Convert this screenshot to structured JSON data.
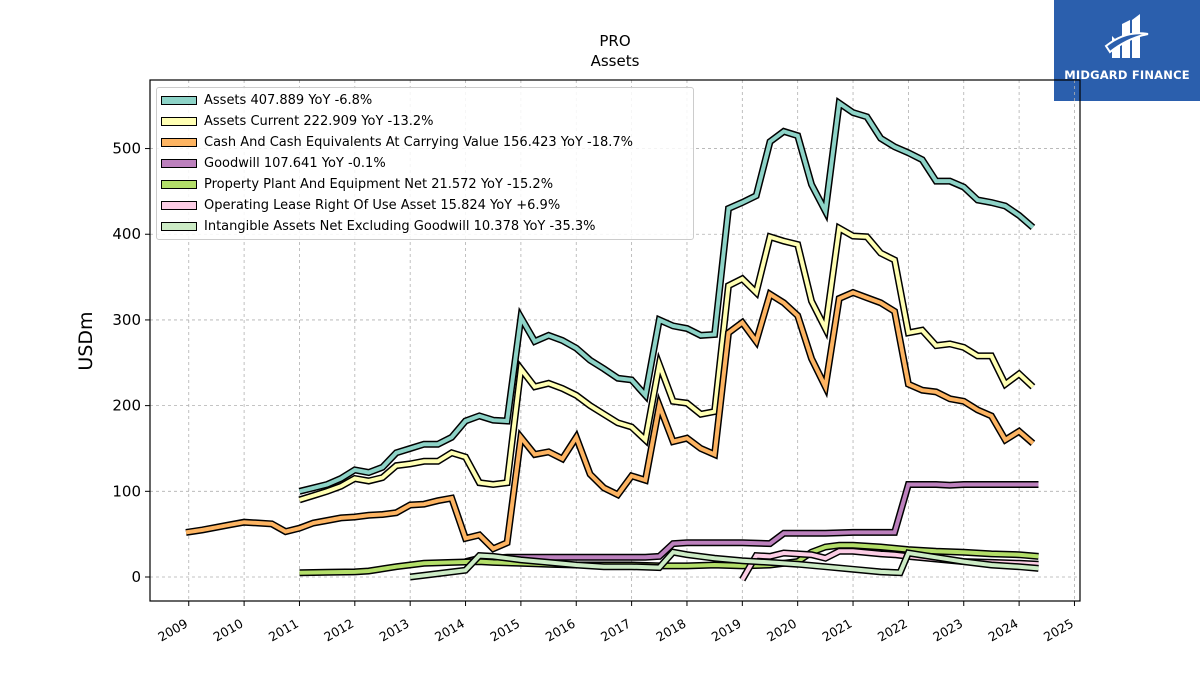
{
  "header": {
    "title": "PRO",
    "subtitle": "Assets"
  },
  "logo": {
    "text": "MIDGARD FINANCE",
    "bg": "#2b5fad",
    "icon": "midgard-logo-icon"
  },
  "chart_data": {
    "type": "line",
    "title": "PRO",
    "subtitle": "Assets",
    "xlabel": "",
    "ylabel": "USDm",
    "xlim": [
      2008.3,
      2025.1
    ],
    "ylim": [
      -28,
      580
    ],
    "x_ticks": [
      "2009",
      "2010",
      "2011",
      "2012",
      "2013",
      "2014",
      "2015",
      "2016",
      "2017",
      "2018",
      "2019",
      "2020",
      "2021",
      "2022",
      "2023",
      "2024",
      "2025"
    ],
    "y_ticks": [
      0,
      100,
      200,
      300,
      400,
      500
    ],
    "grid": true,
    "legend_position": "top-left",
    "series": [
      {
        "name": "Assets",
        "legend": "Assets  407.889 YoY -6.8%",
        "color": "#8dd3c7",
        "points": [
          [
            2011.0,
            100
          ],
          [
            2011.25,
            104
          ],
          [
            2011.5,
            108
          ],
          [
            2011.75,
            115
          ],
          [
            2012.0,
            125
          ],
          [
            2012.25,
            122
          ],
          [
            2012.5,
            128
          ],
          [
            2012.75,
            145
          ],
          [
            2013.0,
            150
          ],
          [
            2013.25,
            155
          ],
          [
            2013.5,
            155
          ],
          [
            2013.75,
            163
          ],
          [
            2014.0,
            182
          ],
          [
            2014.25,
            188
          ],
          [
            2014.5,
            183
          ],
          [
            2014.75,
            182
          ],
          [
            2015.0,
            303
          ],
          [
            2015.25,
            275
          ],
          [
            2015.5,
            282
          ],
          [
            2015.75,
            276
          ],
          [
            2016.0,
            267
          ],
          [
            2016.25,
            253
          ],
          [
            2016.5,
            243
          ],
          [
            2016.75,
            232
          ],
          [
            2017.0,
            230
          ],
          [
            2017.25,
            212
          ],
          [
            2017.5,
            300
          ],
          [
            2017.75,
            293
          ],
          [
            2018.0,
            290
          ],
          [
            2018.25,
            282
          ],
          [
            2018.5,
            283
          ],
          [
            2018.75,
            430
          ],
          [
            2019.0,
            437
          ],
          [
            2019.25,
            445
          ],
          [
            2019.5,
            508
          ],
          [
            2019.75,
            520
          ],
          [
            2020.0,
            515
          ],
          [
            2020.25,
            458
          ],
          [
            2020.5,
            427
          ],
          [
            2020.75,
            553
          ],
          [
            2021.0,
            542
          ],
          [
            2021.25,
            537
          ],
          [
            2021.5,
            512
          ],
          [
            2021.75,
            502
          ],
          [
            2022.0,
            495
          ],
          [
            2022.25,
            487
          ],
          [
            2022.5,
            462
          ],
          [
            2022.75,
            462
          ],
          [
            2023.0,
            455
          ],
          [
            2023.25,
            440
          ],
          [
            2023.5,
            437
          ],
          [
            2023.75,
            433
          ],
          [
            2024.0,
            422
          ],
          [
            2024.25,
            408
          ]
        ]
      },
      {
        "name": "Assets Current",
        "legend": "Assets Current  222.909 YoY -13.2%",
        "color": "#ffffb3",
        "points": [
          [
            2011.0,
            90
          ],
          [
            2011.25,
            95
          ],
          [
            2011.5,
            100
          ],
          [
            2011.75,
            106
          ],
          [
            2012.0,
            115
          ],
          [
            2012.25,
            112
          ],
          [
            2012.5,
            116
          ],
          [
            2012.75,
            130
          ],
          [
            2013.0,
            132
          ],
          [
            2013.25,
            135
          ],
          [
            2013.5,
            135
          ],
          [
            2013.75,
            145
          ],
          [
            2014.0,
            140
          ],
          [
            2014.25,
            110
          ],
          [
            2014.5,
            108
          ],
          [
            2014.75,
            110
          ],
          [
            2015.0,
            243
          ],
          [
            2015.25,
            222
          ],
          [
            2015.5,
            226
          ],
          [
            2015.75,
            220
          ],
          [
            2016.0,
            212
          ],
          [
            2016.25,
            200
          ],
          [
            2016.5,
            190
          ],
          [
            2016.75,
            180
          ],
          [
            2017.0,
            175
          ],
          [
            2017.25,
            160
          ],
          [
            2017.5,
            248
          ],
          [
            2017.75,
            205
          ],
          [
            2018.0,
            203
          ],
          [
            2018.25,
            190
          ],
          [
            2018.5,
            193
          ],
          [
            2018.75,
            340
          ],
          [
            2019.0,
            348
          ],
          [
            2019.25,
            332
          ],
          [
            2019.5,
            397
          ],
          [
            2019.75,
            392
          ],
          [
            2020.0,
            388
          ],
          [
            2020.25,
            322
          ],
          [
            2020.5,
            290
          ],
          [
            2020.75,
            407
          ],
          [
            2021.0,
            398
          ],
          [
            2021.25,
            397
          ],
          [
            2021.5,
            378
          ],
          [
            2021.75,
            370
          ],
          [
            2022.0,
            285
          ],
          [
            2022.25,
            288
          ],
          [
            2022.5,
            270
          ],
          [
            2022.75,
            272
          ],
          [
            2023.0,
            268
          ],
          [
            2023.25,
            258
          ],
          [
            2023.5,
            258
          ],
          [
            2023.75,
            225
          ],
          [
            2024.0,
            237
          ],
          [
            2024.25,
            222
          ]
        ]
      },
      {
        "name": "Cash And Cash Equivalents At Carrying Value",
        "legend": "Cash And Cash Equivalents At Carrying Value  156.423 YoY -18.7%",
        "color": "#fdb462",
        "points": [
          [
            2008.95,
            52
          ],
          [
            2009.25,
            55
          ],
          [
            2009.5,
            58
          ],
          [
            2009.75,
            61
          ],
          [
            2010.0,
            64
          ],
          [
            2010.25,
            63
          ],
          [
            2010.5,
            62
          ],
          [
            2010.75,
            53
          ],
          [
            2011.0,
            57
          ],
          [
            2011.25,
            63
          ],
          [
            2011.5,
            66
          ],
          [
            2011.75,
            69
          ],
          [
            2012.0,
            70
          ],
          [
            2012.25,
            72
          ],
          [
            2012.5,
            73
          ],
          [
            2012.75,
            75
          ],
          [
            2013.0,
            84
          ],
          [
            2013.25,
            85
          ],
          [
            2013.5,
            89
          ],
          [
            2013.75,
            92
          ],
          [
            2014.0,
            45
          ],
          [
            2014.25,
            49
          ],
          [
            2014.5,
            33
          ],
          [
            2014.75,
            40
          ],
          [
            2015.0,
            163
          ],
          [
            2015.25,
            143
          ],
          [
            2015.5,
            146
          ],
          [
            2015.75,
            138
          ],
          [
            2016.0,
            163
          ],
          [
            2016.25,
            120
          ],
          [
            2016.5,
            104
          ],
          [
            2016.75,
            96
          ],
          [
            2017.0,
            118
          ],
          [
            2017.25,
            113
          ],
          [
            2017.5,
            200
          ],
          [
            2017.75,
            158
          ],
          [
            2018.0,
            162
          ],
          [
            2018.25,
            150
          ],
          [
            2018.5,
            143
          ],
          [
            2018.75,
            285
          ],
          [
            2019.0,
            297
          ],
          [
            2019.25,
            275
          ],
          [
            2019.5,
            330
          ],
          [
            2019.75,
            320
          ],
          [
            2020.0,
            305
          ],
          [
            2020.25,
            255
          ],
          [
            2020.5,
            222
          ],
          [
            2020.75,
            325
          ],
          [
            2021.0,
            332
          ],
          [
            2021.25,
            326
          ],
          [
            2021.5,
            320
          ],
          [
            2021.75,
            310
          ],
          [
            2022.0,
            225
          ],
          [
            2022.25,
            218
          ],
          [
            2022.5,
            216
          ],
          [
            2022.75,
            208
          ],
          [
            2023.0,
            205
          ],
          [
            2023.25,
            195
          ],
          [
            2023.5,
            188
          ],
          [
            2023.75,
            160
          ],
          [
            2024.0,
            170
          ],
          [
            2024.25,
            156
          ]
        ]
      },
      {
        "name": "Goodwill",
        "legend": "Goodwill  107.641 YoY -0.1%",
        "color": "#bc80bd",
        "points": [
          [
            2014.0,
            18
          ],
          [
            2014.25,
            22
          ],
          [
            2014.5,
            22
          ],
          [
            2014.75,
            23
          ],
          [
            2015.0,
            23
          ],
          [
            2015.5,
            23
          ],
          [
            2016.0,
            23
          ],
          [
            2016.5,
            23
          ],
          [
            2017.0,
            23
          ],
          [
            2017.25,
            23
          ],
          [
            2017.5,
            24
          ],
          [
            2017.75,
            39
          ],
          [
            2018.0,
            40
          ],
          [
            2018.5,
            40
          ],
          [
            2019.0,
            40
          ],
          [
            2019.5,
            39
          ],
          [
            2019.75,
            51
          ],
          [
            2020.0,
            51
          ],
          [
            2020.5,
            51
          ],
          [
            2021.0,
            52
          ],
          [
            2021.25,
            52
          ],
          [
            2021.75,
            52
          ],
          [
            2022.0,
            108
          ],
          [
            2022.5,
            108
          ],
          [
            2022.75,
            107
          ],
          [
            2023.0,
            108
          ],
          [
            2023.5,
            108
          ],
          [
            2024.0,
            108
          ],
          [
            2024.35,
            108
          ]
        ]
      },
      {
        "name": "Property Plant And Equipment Net",
        "legend": "Property Plant And Equipment Net  21.572 YoY -15.2%",
        "color": "#b3de69",
        "points": [
          [
            2011.0,
            5
          ],
          [
            2011.5,
            5.5
          ],
          [
            2012.0,
            6
          ],
          [
            2012.25,
            7
          ],
          [
            2012.75,
            12
          ],
          [
            2013.25,
            16
          ],
          [
            2013.75,
            17
          ],
          [
            2014.25,
            18
          ],
          [
            2014.5,
            17
          ],
          [
            2015.0,
            16
          ],
          [
            2015.5,
            15
          ],
          [
            2016.0,
            14
          ],
          [
            2016.5,
            14
          ],
          [
            2017.0,
            14
          ],
          [
            2017.5,
            13
          ],
          [
            2018.0,
            13
          ],
          [
            2018.5,
            14
          ],
          [
            2019.0,
            13
          ],
          [
            2019.5,
            14
          ],
          [
            2020.0,
            18
          ],
          [
            2020.25,
            29
          ],
          [
            2020.5,
            35
          ],
          [
            2020.75,
            37
          ],
          [
            2021.0,
            37
          ],
          [
            2021.5,
            35
          ],
          [
            2022.0,
            32
          ],
          [
            2022.5,
            30
          ],
          [
            2023.0,
            29
          ],
          [
            2023.5,
            27
          ],
          [
            2024.0,
            26
          ],
          [
            2024.35,
            24
          ]
        ]
      },
      {
        "name": "Operating Lease Right Of Use Asset",
        "legend": "Operating Lease Right Of Use Asset  15.824 YoY +6.9%",
        "color": "#fccde5",
        "points": [
          [
            2019.0,
            -3
          ],
          [
            2019.25,
            25
          ],
          [
            2019.5,
            24
          ],
          [
            2019.75,
            28
          ],
          [
            2020.0,
            27
          ],
          [
            2020.25,
            26
          ],
          [
            2020.5,
            22
          ],
          [
            2020.75,
            30
          ],
          [
            2021.0,
            30
          ],
          [
            2021.5,
            27
          ],
          [
            2021.75,
            26
          ],
          [
            2022.0,
            24
          ],
          [
            2022.5,
            21
          ],
          [
            2023.0,
            18
          ],
          [
            2023.5,
            17
          ],
          [
            2024.0,
            16
          ],
          [
            2024.35,
            15
          ]
        ]
      },
      {
        "name": "Intangible Assets Net Excluding Goodwill",
        "legend": "Intangible Assets Net Excluding Goodwill  10.378 YoY -35.3%",
        "color": "#ccebc5",
        "points": [
          [
            2013.0,
            0
          ],
          [
            2013.5,
            4
          ],
          [
            2014.0,
            8
          ],
          [
            2014.25,
            25
          ],
          [
            2014.5,
            24
          ],
          [
            2015.0,
            20
          ],
          [
            2015.5,
            17
          ],
          [
            2016.0,
            14
          ],
          [
            2016.5,
            12
          ],
          [
            2017.0,
            12
          ],
          [
            2017.5,
            11
          ],
          [
            2017.75,
            29
          ],
          [
            2018.0,
            26
          ],
          [
            2018.5,
            22
          ],
          [
            2019.0,
            19
          ],
          [
            2019.5,
            17
          ],
          [
            2020.0,
            15
          ],
          [
            2020.5,
            12
          ],
          [
            2021.0,
            9
          ],
          [
            2021.5,
            6
          ],
          [
            2021.85,
            5
          ],
          [
            2022.0,
            28
          ],
          [
            2022.5,
            23
          ],
          [
            2023.0,
            18
          ],
          [
            2023.5,
            14
          ],
          [
            2024.0,
            12
          ],
          [
            2024.35,
            10
          ]
        ]
      }
    ]
  }
}
